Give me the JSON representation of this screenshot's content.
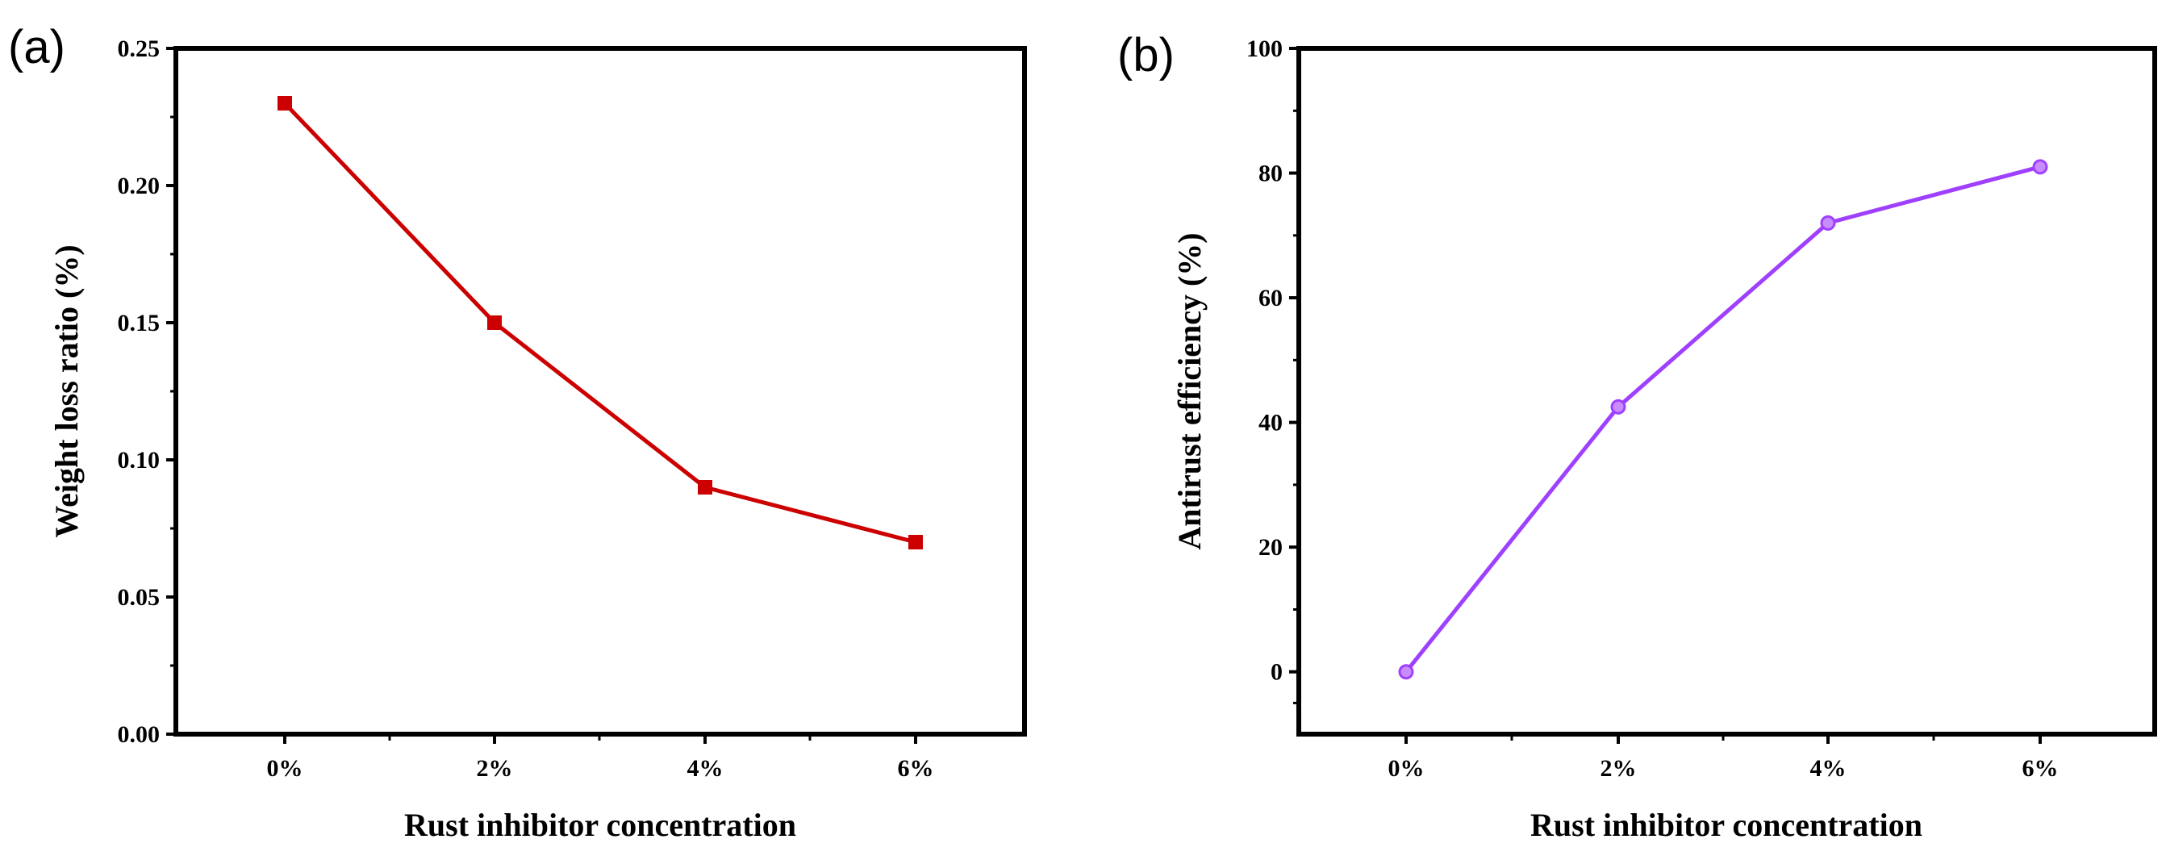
{
  "chart_data": [
    {
      "type": "line",
      "panel_label": "(a)",
      "categories": [
        "0%",
        "2%",
        "4%",
        "6%"
      ],
      "values": [
        0.23,
        0.15,
        0.09,
        0.07
      ],
      "xlabel": "Rust inhibitor concentration",
      "ylabel": "Weight loss ratio (%)",
      "ylim": [
        0,
        0.25
      ],
      "yticks": [
        0.0,
        0.05,
        0.1,
        0.15,
        0.2,
        0.25
      ],
      "ytick_labels": [
        "0.00",
        "0.05",
        "0.10",
        "0.15",
        "0.20",
        "0.25"
      ],
      "marker": "square",
      "color": "#cc0000",
      "grid": false
    },
    {
      "type": "line",
      "panel_label": "(b)",
      "categories": [
        "0%",
        "2%",
        "4%",
        "6%"
      ],
      "values": [
        0,
        42.5,
        72,
        81
      ],
      "xlabel": "Rust inhibitor concentration",
      "ylabel": "Antirust efficiency (%)",
      "ylim": [
        -10,
        100
      ],
      "yticks": [
        0,
        20,
        40,
        60,
        80,
        100
      ],
      "ytick_labels": [
        "0",
        "20",
        "40",
        "60",
        "80",
        "100"
      ],
      "marker": "circle",
      "color": "#a040ff",
      "grid": false
    }
  ]
}
